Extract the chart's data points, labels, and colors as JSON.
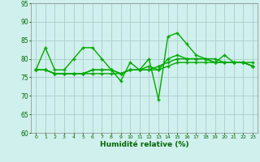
{
  "title": "",
  "xlabel": "Humidité relative (%)",
  "xlim": [
    -0.5,
    23.5
  ],
  "ylim": [
    60,
    95
  ],
  "yticks": [
    60,
    65,
    70,
    75,
    80,
    85,
    90,
    95
  ],
  "xticks": [
    0,
    1,
    2,
    3,
    4,
    5,
    6,
    7,
    8,
    9,
    10,
    11,
    12,
    13,
    14,
    15,
    16,
    17,
    18,
    19,
    20,
    21,
    22,
    23
  ],
  "background_color": "#cff0ec",
  "grid_color": "#aacccc",
  "line_color": "#00aa00",
  "lines": [
    [
      77,
      83,
      77,
      77,
      80,
      83,
      83,
      80,
      77,
      74,
      79,
      77,
      80,
      69,
      86,
      87,
      84,
      81,
      80,
      79,
      81,
      79,
      79,
      78
    ],
    [
      77,
      77,
      76,
      76,
      76,
      76,
      76,
      76,
      76,
      76,
      77,
      77,
      77,
      77,
      78,
      79,
      79,
      79,
      79,
      79,
      79,
      79,
      79,
      79
    ],
    [
      77,
      77,
      76,
      76,
      76,
      76,
      77,
      77,
      77,
      76,
      77,
      77,
      77,
      78,
      79,
      80,
      80,
      80,
      80,
      80,
      79,
      79,
      79,
      78
    ],
    [
      77,
      77,
      76,
      76,
      76,
      76,
      77,
      77,
      77,
      76,
      77,
      77,
      78,
      77,
      80,
      81,
      80,
      80,
      80,
      79,
      79,
      79,
      79,
      78
    ]
  ]
}
